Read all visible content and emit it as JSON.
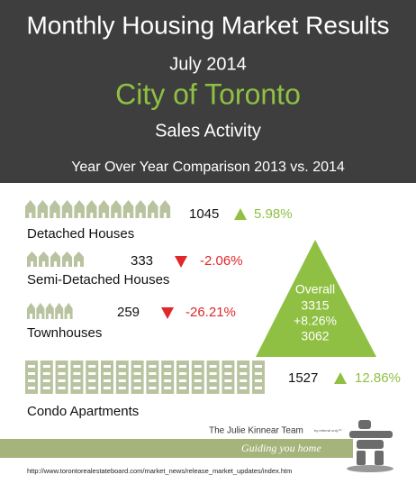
{
  "header": {
    "title": "Monthly Housing Market Results",
    "date": "July 2014",
    "city": "City of Toronto",
    "subtitle": "Sales Activity",
    "comparison": "Year Over Year Comparison 2013 vs. 2014"
  },
  "rows": [
    {
      "label": "Detached Houses",
      "value": "1045",
      "change": "5.98%",
      "direction": "up"
    },
    {
      "label": "Semi-Detached Houses",
      "value": "333",
      "change": "-2.06%",
      "direction": "down"
    },
    {
      "label": "Townhouses",
      "value": "259",
      "change": "-26.21%",
      "direction": "down"
    },
    {
      "label": "Condo Apartments",
      "value": "1527",
      "change": "12.86%",
      "direction": "up"
    }
  ],
  "overall": {
    "label": "Overall",
    "current": "3315",
    "change": "+8.26%",
    "previous": "3062"
  },
  "footer": {
    "brand": "The Julie Kinnear Team",
    "note": "by referral only™",
    "tagline": "Guiding you home",
    "url": "http://www.torontorealestateboard.com/market_news/release_market_updates/index.htm"
  }
}
